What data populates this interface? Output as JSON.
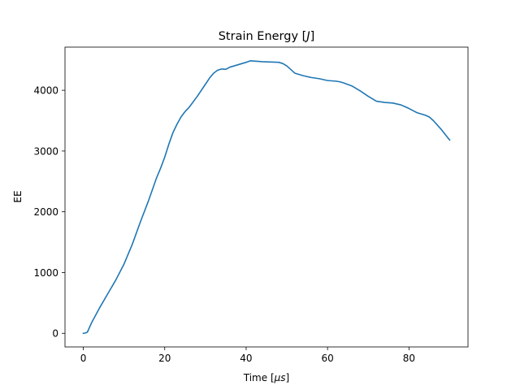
{
  "chart_data": {
    "type": "line",
    "title": "Strain Energy [J]",
    "title_parts": [
      "Strain Energy [",
      "J",
      "]"
    ],
    "xlabel": "Time [μs]",
    "xlabel_parts": [
      "Time [",
      "μs",
      "]"
    ],
    "ylabel": "EE",
    "xlim": [
      -4.5,
      94.5
    ],
    "ylim": [
      -224,
      4710
    ],
    "xticks": [
      0,
      20,
      40,
      60,
      80
    ],
    "yticks": [
      0,
      1000,
      2000,
      3000,
      4000
    ],
    "grid": false,
    "series": [
      {
        "color": "#1f77b4",
        "x": [
          0,
          0.5,
          1,
          2,
          4,
          6,
          8,
          10,
          12,
          14,
          16,
          17,
          18,
          19,
          20,
          21,
          22,
          23,
          24,
          25,
          26,
          28,
          30,
          31,
          32,
          33,
          34,
          35,
          36,
          38,
          40,
          41,
          42,
          44,
          46,
          48,
          49,
          50,
          51,
          52,
          54,
          56,
          58,
          60,
          62,
          63,
          64,
          66,
          68,
          70,
          72,
          74,
          76,
          78,
          79,
          80,
          82,
          84,
          85,
          86,
          88,
          90
        ],
        "y": [
          0,
          5,
          20,
          170,
          420,
          650,
          880,
          1140,
          1460,
          1830,
          2180,
          2370,
          2560,
          2720,
          2900,
          3110,
          3300,
          3440,
          3560,
          3650,
          3720,
          3900,
          4100,
          4200,
          4280,
          4330,
          4350,
          4345,
          4380,
          4420,
          4460,
          4485,
          4480,
          4470,
          4465,
          4460,
          4440,
          4400,
          4340,
          4280,
          4240,
          4210,
          4190,
          4160,
          4150,
          4140,
          4120,
          4070,
          3990,
          3900,
          3820,
          3800,
          3790,
          3760,
          3730,
          3700,
          3630,
          3590,
          3560,
          3500,
          3350,
          3180
        ]
      }
    ]
  }
}
